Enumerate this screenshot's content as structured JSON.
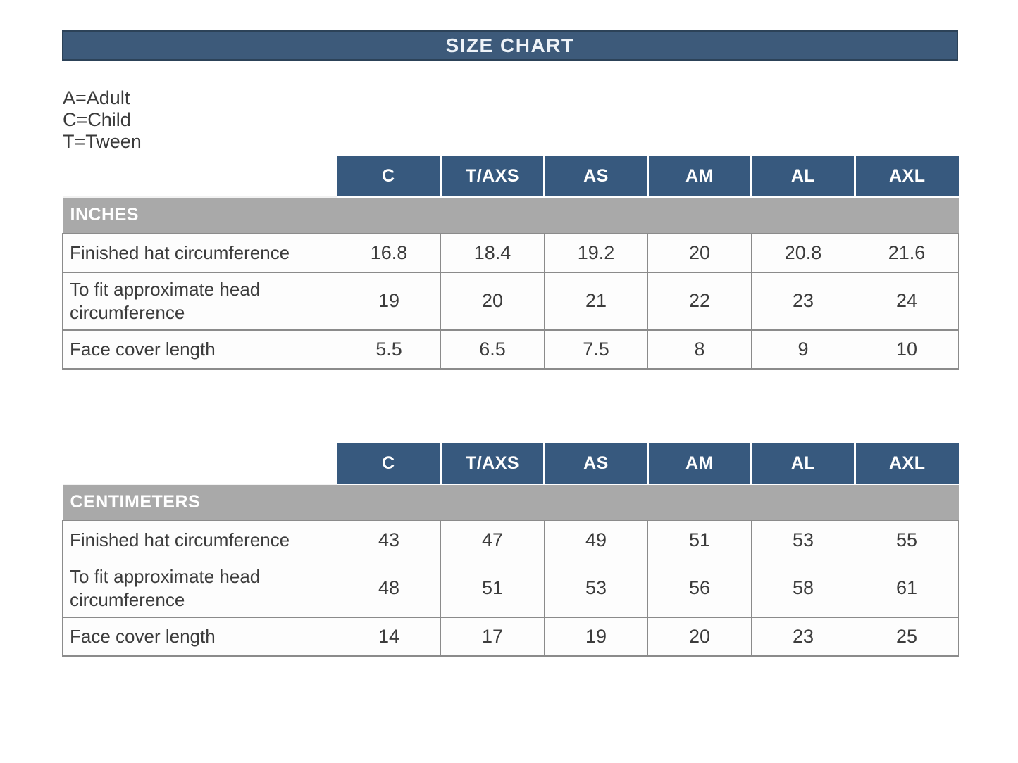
{
  "title_bar": {
    "label": "SIZE CHART"
  },
  "legend": {
    "line1": "A=Adult",
    "line2": "C=Child",
    "line3": "T=Tween"
  },
  "chart_data": {
    "type": "table",
    "title": "SIZE CHART",
    "size_legend": [
      "A=Adult",
      "C=Child",
      "T=Tween"
    ],
    "columns": [
      "C",
      "T/AXS",
      "AS",
      "AM",
      "AL",
      "AXL"
    ],
    "tables": [
      {
        "unit": "INCHES",
        "rows": [
          {
            "label": "Finished hat circumference",
            "values": [
              "16.8",
              "18.4",
              "19.2",
              "20",
              "20.8",
              "21.6"
            ]
          },
          {
            "label": "To fit approximate head circumference",
            "values": [
              "19",
              "20",
              "21",
              "22",
              "23",
              "24"
            ]
          },
          {
            "label": "Face cover length",
            "values": [
              "5.5",
              "6.5",
              "7.5",
              "8",
              "9",
              "10"
            ]
          }
        ]
      },
      {
        "unit": "CENTIMETERS",
        "rows": [
          {
            "label": "Finished hat circumference",
            "values": [
              "43",
              "47",
              "49",
              "51",
              "53",
              "55"
            ]
          },
          {
            "label": "To fit approximate head circumference",
            "values": [
              "48",
              "51",
              "53",
              "56",
              "58",
              "61"
            ]
          },
          {
            "label": "Face cover length",
            "values": [
              "14",
              "17",
              "19",
              "20",
              "23",
              "25"
            ]
          }
        ]
      }
    ]
  },
  "colors": {
    "title_bar_blue": "#3d5a7a",
    "header_blue": "#37597e",
    "unit_row_gray": "#a9a9a9",
    "text_dark": "#3c3c3c"
  }
}
